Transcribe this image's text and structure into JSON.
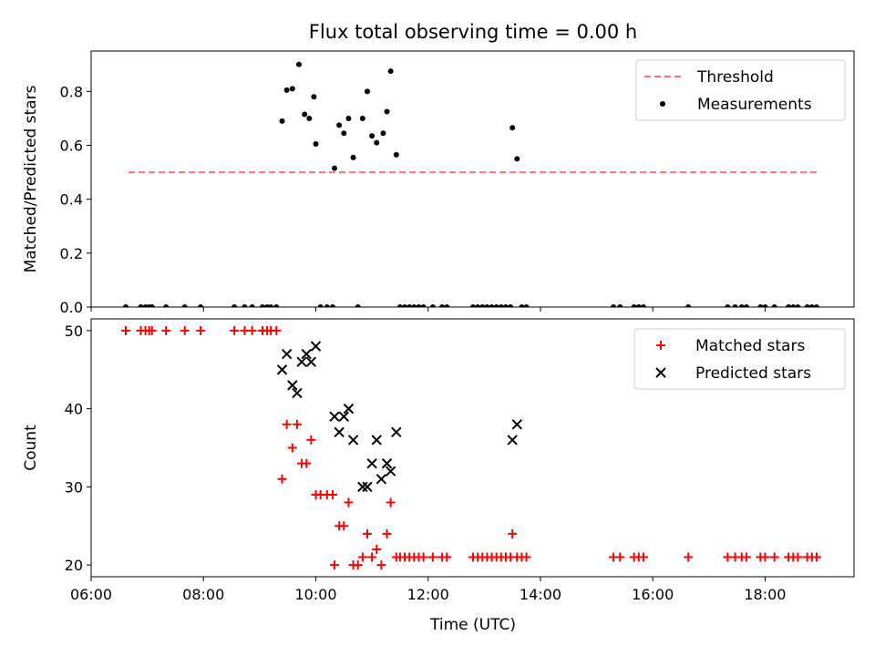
{
  "title": "Flux total observing time = 0.00 h",
  "chart_data": [
    {
      "type": "scatter",
      "ylabel": "Matched/Predicted stars",
      "xlabel": "",
      "ylim": [
        0,
        0.95
      ],
      "xlim": [
        "06:00",
        "19:35"
      ],
      "yticks": [
        "0.0",
        "0.2",
        "0.4",
        "0.6",
        "0.8"
      ],
      "ytick_values": [
        0,
        0.2,
        0.4,
        0.6,
        0.8
      ],
      "legend_position": "top-right",
      "threshold": {
        "name": "Threshold",
        "y": 0.5,
        "x_range": [
          "06:40",
          "18:55"
        ],
        "color": "#ff7070",
        "style": "dashed"
      },
      "series": [
        {
          "name": "Measurements",
          "color": "#000000",
          "marker": "dot",
          "points": [
            [
              "06:37",
              0
            ],
            [
              "06:53",
              0
            ],
            [
              "06:58",
              0
            ],
            [
              "07:02",
              0
            ],
            [
              "07:05",
              0
            ],
            [
              "07:20",
              0
            ],
            [
              "07:40",
              0
            ],
            [
              "07:57",
              0
            ],
            [
              "08:33",
              0
            ],
            [
              "08:44",
              0
            ],
            [
              "08:52",
              0
            ],
            [
              "09:03",
              0
            ],
            [
              "09:08",
              0
            ],
            [
              "09:12",
              0
            ],
            [
              "09:18",
              0
            ],
            [
              "09:24",
              0.69
            ],
            [
              "09:29",
              0.805
            ],
            [
              "09:35",
              0.81
            ],
            [
              "09:42",
              0.9
            ],
            [
              "09:48",
              0.715
            ],
            [
              "09:53",
              0.7
            ],
            [
              "09:58",
              0.78
            ],
            [
              "10:00",
              0.605
            ],
            [
              "10:05",
              0
            ],
            [
              "10:12",
              0
            ],
            [
              "10:18",
              0
            ],
            [
              "10:20",
              0.515
            ],
            [
              "10:25",
              0.675
            ],
            [
              "10:30",
              0.645
            ],
            [
              "10:35",
              0.7
            ],
            [
              "10:40",
              0.555
            ],
            [
              "10:45",
              0
            ],
            [
              "10:50",
              0.7
            ],
            [
              "10:55",
              0.8
            ],
            [
              "11:00",
              0.635
            ],
            [
              "11:05",
              0.61
            ],
            [
              "11:12",
              0.645
            ],
            [
              "11:16",
              0.725
            ],
            [
              "11:20",
              0.875
            ],
            [
              "11:26",
              0.565
            ],
            [
              "11:30",
              0
            ],
            [
              "11:35",
              0
            ],
            [
              "11:40",
              0
            ],
            [
              "11:45",
              0
            ],
            [
              "11:50",
              0
            ],
            [
              "11:55",
              0
            ],
            [
              "12:05",
              0
            ],
            [
              "12:15",
              0
            ],
            [
              "12:20",
              0
            ],
            [
              "12:48",
              0
            ],
            [
              "12:53",
              0
            ],
            [
              "12:58",
              0
            ],
            [
              "13:03",
              0
            ],
            [
              "13:08",
              0
            ],
            [
              "13:13",
              0
            ],
            [
              "13:18",
              0
            ],
            [
              "13:23",
              0
            ],
            [
              "13:28",
              0
            ],
            [
              "13:30",
              0.665
            ],
            [
              "13:35",
              0.55
            ],
            [
              "13:40",
              0
            ],
            [
              "13:45",
              0
            ],
            [
              "15:18",
              0
            ],
            [
              "15:25",
              0
            ],
            [
              "15:40",
              0
            ],
            [
              "15:45",
              0
            ],
            [
              "15:50",
              0
            ],
            [
              "16:38",
              0
            ],
            [
              "17:20",
              0
            ],
            [
              "17:28",
              0
            ],
            [
              "17:35",
              0
            ],
            [
              "17:40",
              0
            ],
            [
              "17:55",
              0
            ],
            [
              "18:00",
              0
            ],
            [
              "18:10",
              0
            ],
            [
              "18:25",
              0
            ],
            [
              "18:30",
              0
            ],
            [
              "18:35",
              0
            ],
            [
              "18:45",
              0
            ],
            [
              "18:50",
              0
            ],
            [
              "18:55",
              0
            ]
          ]
        }
      ]
    },
    {
      "type": "scatter",
      "ylabel": "Count",
      "xlabel": "Time (UTC)",
      "ylim": [
        18.5,
        51.5
      ],
      "xlim": [
        "06:00",
        "19:35"
      ],
      "yticks": [
        "20",
        "30",
        "40",
        "50"
      ],
      "ytick_values": [
        20,
        30,
        40,
        50
      ],
      "xticks": [
        "06:00",
        "08:00",
        "10:00",
        "12:00",
        "14:00",
        "16:00",
        "18:00"
      ],
      "legend_position": "top-right",
      "series": [
        {
          "name": "Matched stars",
          "color": "#ff0000",
          "marker": "plus",
          "points": [
            [
              "06:37",
              50
            ],
            [
              "06:53",
              50
            ],
            [
              "06:58",
              50
            ],
            [
              "07:02",
              50
            ],
            [
              "07:05",
              50
            ],
            [
              "07:20",
              50
            ],
            [
              "07:40",
              50
            ],
            [
              "07:57",
              50
            ],
            [
              "08:33",
              50
            ],
            [
              "08:44",
              50
            ],
            [
              "08:52",
              50
            ],
            [
              "09:03",
              50
            ],
            [
              "09:08",
              50
            ],
            [
              "09:12",
              50
            ],
            [
              "09:18",
              50
            ],
            [
              "09:24",
              31
            ],
            [
              "09:29",
              38
            ],
            [
              "09:35",
              35
            ],
            [
              "09:40",
              38
            ],
            [
              "09:45",
              33
            ],
            [
              "09:50",
              33
            ],
            [
              "09:55",
              36
            ],
            [
              "10:00",
              29
            ],
            [
              "10:05",
              29
            ],
            [
              "10:12",
              29
            ],
            [
              "10:18",
              29
            ],
            [
              "10:20",
              20
            ],
            [
              "10:25",
              25
            ],
            [
              "10:30",
              25
            ],
            [
              "10:35",
              28
            ],
            [
              "10:40",
              20
            ],
            [
              "10:45",
              20
            ],
            [
              "10:50",
              21
            ],
            [
              "10:55",
              24
            ],
            [
              "11:00",
              21
            ],
            [
              "11:05",
              22
            ],
            [
              "11:10",
              20
            ],
            [
              "11:16",
              24
            ],
            [
              "11:20",
              28
            ],
            [
              "11:26",
              21
            ],
            [
              "11:30",
              21
            ],
            [
              "11:35",
              21
            ],
            [
              "11:40",
              21
            ],
            [
              "11:45",
              21
            ],
            [
              "11:50",
              21
            ],
            [
              "11:55",
              21
            ],
            [
              "12:05",
              21
            ],
            [
              "12:15",
              21
            ],
            [
              "12:20",
              21
            ],
            [
              "12:48",
              21
            ],
            [
              "12:53",
              21
            ],
            [
              "12:58",
              21
            ],
            [
              "13:03",
              21
            ],
            [
              "13:08",
              21
            ],
            [
              "13:13",
              21
            ],
            [
              "13:18",
              21
            ],
            [
              "13:23",
              21
            ],
            [
              "13:28",
              21
            ],
            [
              "13:30",
              24
            ],
            [
              "13:35",
              21
            ],
            [
              "13:40",
              21
            ],
            [
              "13:45",
              21
            ],
            [
              "15:18",
              21
            ],
            [
              "15:25",
              21
            ],
            [
              "15:40",
              21
            ],
            [
              "15:45",
              21
            ],
            [
              "15:50",
              21
            ],
            [
              "16:38",
              21
            ],
            [
              "17:20",
              21
            ],
            [
              "17:28",
              21
            ],
            [
              "17:35",
              21
            ],
            [
              "17:40",
              21
            ],
            [
              "17:55",
              21
            ],
            [
              "18:00",
              21
            ],
            [
              "18:10",
              21
            ],
            [
              "18:25",
              21
            ],
            [
              "18:30",
              21
            ],
            [
              "18:35",
              21
            ],
            [
              "18:45",
              21
            ],
            [
              "18:50",
              21
            ],
            [
              "18:55",
              21
            ]
          ]
        },
        {
          "name": "Predicted stars",
          "color": "#000000",
          "marker": "x",
          "points": [
            [
              "09:24",
              45
            ],
            [
              "09:29",
              47
            ],
            [
              "09:35",
              43
            ],
            [
              "09:40",
              42
            ],
            [
              "09:45",
              46
            ],
            [
              "09:50",
              47
            ],
            [
              "09:55",
              46
            ],
            [
              "10:00",
              48
            ],
            [
              "10:20",
              39
            ],
            [
              "10:25",
              37
            ],
            [
              "10:30",
              39
            ],
            [
              "10:35",
              40
            ],
            [
              "10:40",
              36
            ],
            [
              "10:50",
              30
            ],
            [
              "10:55",
              30
            ],
            [
              "11:00",
              33
            ],
            [
              "11:05",
              36
            ],
            [
              "11:10",
              31
            ],
            [
              "11:16",
              33
            ],
            [
              "11:20",
              32
            ],
            [
              "11:26",
              37
            ],
            [
              "13:30",
              36
            ],
            [
              "13:35",
              38
            ]
          ]
        }
      ]
    }
  ]
}
